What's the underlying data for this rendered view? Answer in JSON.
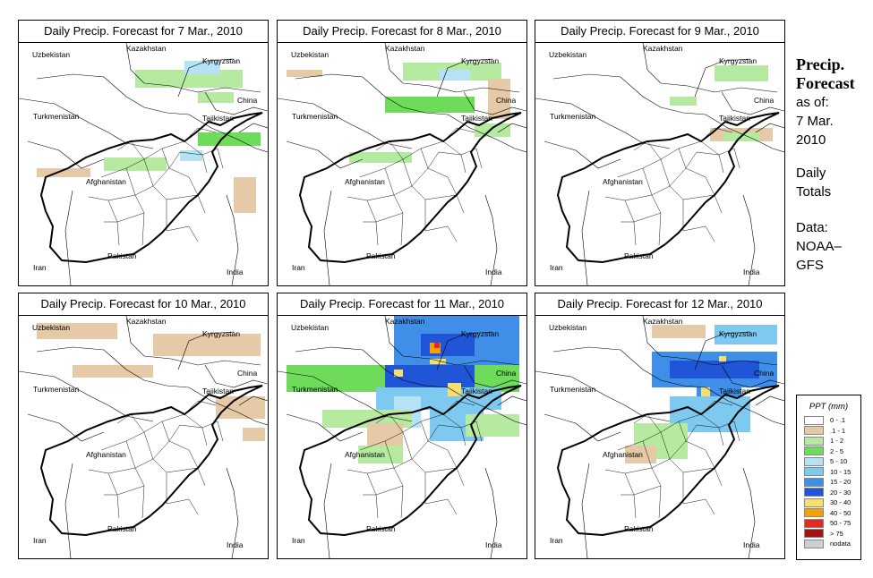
{
  "sidebar": {
    "title_line1": "Precip.",
    "title_line2": "Forecast",
    "as_of_label": "as of:",
    "as_of_date1": "7 Mar.",
    "as_of_date2": "2010",
    "totals1": "Daily",
    "totals2": "Totals",
    "data_label": "Data:",
    "data_source1": "NOAA–",
    "data_source2": "GFS"
  },
  "labels": {
    "uzbekistan": "Uzbekistan",
    "kazakhstan": "Kazakhstan",
    "kyrgyzstan": "Kyrgyzstan",
    "turkmenistan": "Turkmenistan",
    "tajikistan": "Tajikistan",
    "china": "China",
    "afghanistan": "Afghanistan",
    "pakistan": "Pakistan",
    "iran": "Iran",
    "india": "India"
  },
  "panels": [
    {
      "title": "Daily Precip. Forecast for  7 Mar., 2010"
    },
    {
      "title": "Daily Precip. Forecast for  8 Mar., 2010"
    },
    {
      "title": "Daily Precip. Forecast for  9 Mar., 2010"
    },
    {
      "title": "Daily Precip. Forecast for  10 Mar., 2010"
    },
    {
      "title": "Daily Precip. Forecast for  11 Mar., 2010"
    },
    {
      "title": "Daily Precip. Forecast for  12 Mar., 2010"
    }
  ],
  "legend": {
    "title": "PPT (mm)",
    "items": [
      {
        "label": "0 - .1",
        "color": "#ffffff"
      },
      {
        "label": ".1 - 1",
        "color": "#e6c9a6"
      },
      {
        "label": "1 - 2",
        "color": "#b6eaa0"
      },
      {
        "label": "2 - 5",
        "color": "#6edc5a"
      },
      {
        "label": "5 - 10",
        "color": "#b5e2f5"
      },
      {
        "label": "10 - 15",
        "color": "#7ec9ef"
      },
      {
        "label": "15 - 20",
        "color": "#3f8fe8"
      },
      {
        "label": "20 - 30",
        "color": "#1f55d6"
      },
      {
        "label": "30 - 40",
        "color": "#f7df6e"
      },
      {
        "label": "40 - 50",
        "color": "#f5a100"
      },
      {
        "label": "50 - 75",
        "color": "#e8281a"
      },
      {
        "label": "> 75",
        "color": "#a01414"
      },
      {
        "label": "nodata",
        "color": "#cfcfcf"
      }
    ]
  }
}
